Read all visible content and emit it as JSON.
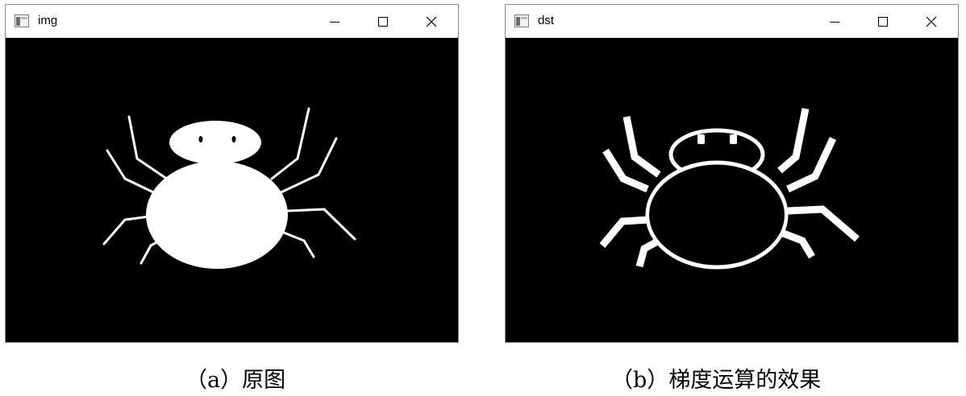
{
  "windows": [
    {
      "title": "img",
      "view": "original"
    },
    {
      "title": "dst",
      "view": "gradient"
    }
  ],
  "captions": {
    "a": "（a）原图",
    "b": "（b）梯度运算的效果"
  },
  "colors": {
    "background": "#000000",
    "foreground": "#ffffff"
  },
  "icons": [
    "app-icon",
    "minimize-icon",
    "maximize-icon",
    "close-icon"
  ]
}
